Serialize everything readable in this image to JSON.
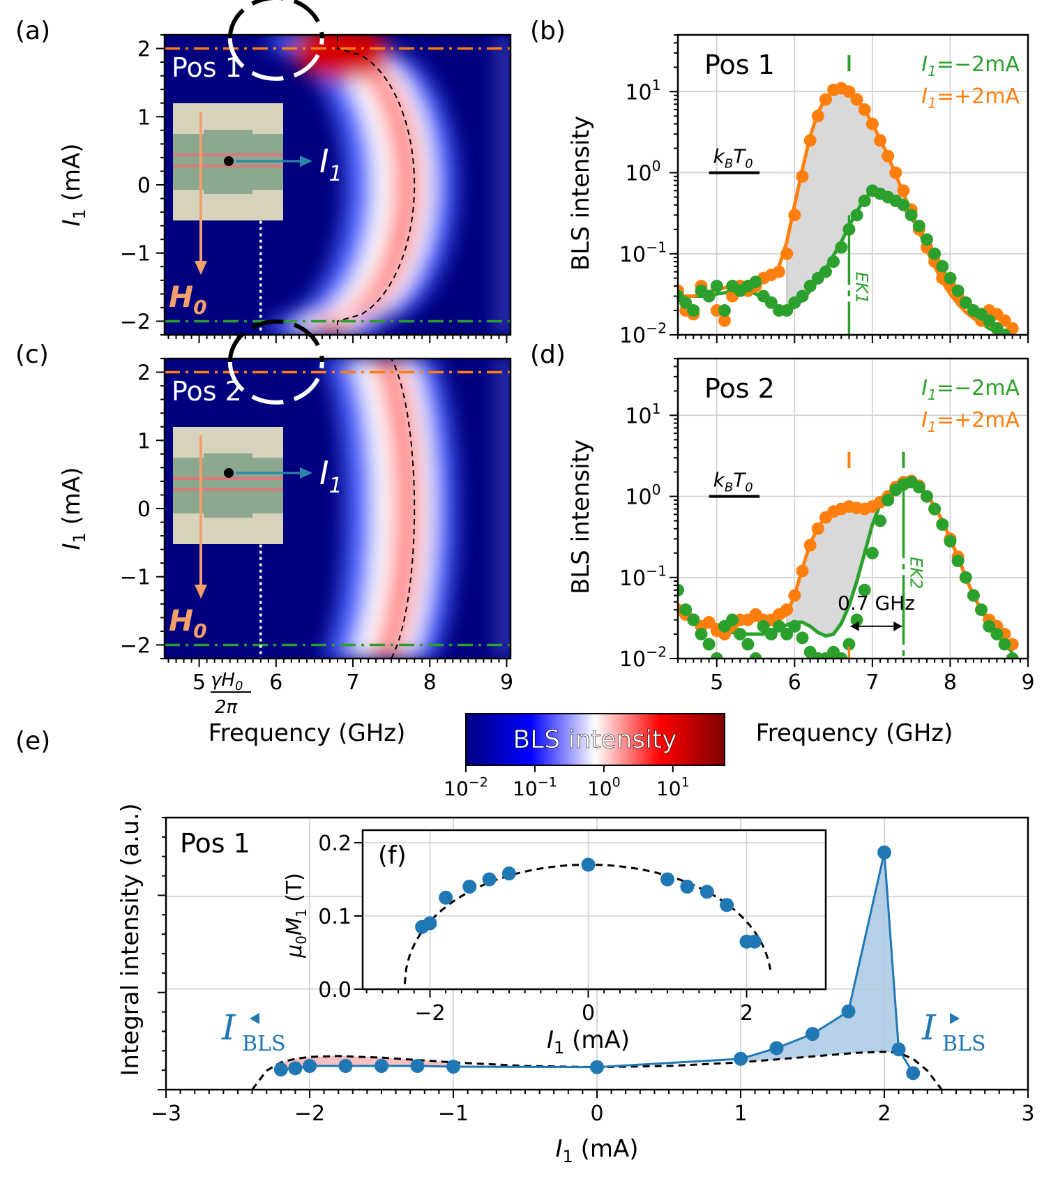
{
  "chart_data": [
    {
      "panel": "(a)",
      "type": "heatmap",
      "label": "Pos 1",
      "xlabel": "Frequency (GHz)",
      "ylabel_main": "I",
      "ylabel_sub": "1",
      "ylabel_unit": " (mA)",
      "xlim": [
        4.55,
        9.05
      ],
      "ylim": [
        -2.2,
        2.2
      ],
      "yticks": [
        -2,
        -1,
        0,
        1,
        2
      ],
      "xticks": [
        5,
        6,
        7,
        8,
        9
      ],
      "dispersion": {
        "fmax": 7.8,
        "fmin": 6.8,
        "imax": 2.0
      },
      "hline_top": 2.0,
      "hline_bottom": -2.0,
      "gamma_h0_line": 5.8,
      "colors": {
        "hline_top": "#ff7f0e",
        "hline_bottom": "#2ca02c",
        "circle": "#ffffff"
      },
      "inset": {
        "current_label": "I",
        "current_sub": "1",
        "field_label": "H",
        "field_sub": "0"
      }
    },
    {
      "panel": "(b)",
      "type": "scatter",
      "label": "Pos 1",
      "xlabel": "",
      "ylabel": "BLS intensity",
      "xlim": [
        4.5,
        9.0
      ],
      "ylim_log10": [
        -2,
        1.7
      ],
      "xticks": [
        5,
        6,
        7,
        8,
        9
      ],
      "yticks": [
        "10^-2",
        "10^-1",
        "10^0",
        "10^1"
      ],
      "kbt0": {
        "label": "k",
        "sub1": "B",
        "mid": "T",
        "sub2": "0",
        "y": 1.0,
        "x": [
          4.9,
          5.55
        ]
      },
      "marker_line_label": "EK1",
      "marker_freq": 6.7,
      "series": [
        {
          "name": "I1=−2mA",
          "color": "#2ca02c",
          "x": [
            4.5,
            4.6,
            4.7,
            4.8,
            4.9,
            5.0,
            5.1,
            5.2,
            5.3,
            5.4,
            5.5,
            5.6,
            5.7,
            5.8,
            5.9,
            6.0,
            6.1,
            6.2,
            6.3,
            6.4,
            6.5,
            6.6,
            6.7,
            6.8,
            6.9,
            7.0,
            7.1,
            7.2,
            7.3,
            7.4,
            7.5,
            7.6,
            7.7,
            7.8,
            7.9,
            8.0,
            8.1,
            8.2,
            8.3,
            8.4,
            8.5,
            8.6,
            8.7
          ],
          "y": [
            0.03,
            0.025,
            0.02,
            0.035,
            0.03,
            0.04,
            0.02,
            0.04,
            0.035,
            0.04,
            0.045,
            0.03,
            0.025,
            0.02,
            0.02,
            0.025,
            0.03,
            0.04,
            0.05,
            0.06,
            0.08,
            0.12,
            0.2,
            0.3,
            0.45,
            0.6,
            0.55,
            0.5,
            0.45,
            0.4,
            0.3,
            0.22,
            0.15,
            0.1,
            0.07,
            0.05,
            0.035,
            0.025,
            0.02,
            0.018,
            0.015,
            0.012,
            0.01
          ],
          "fit_y": [
            0.03,
            0.03,
            0.03,
            0.03,
            0.03,
            0.032,
            0.033,
            0.035,
            0.036,
            0.035,
            0.032,
            0.028,
            0.024,
            0.021,
            0.02,
            0.022,
            0.027,
            0.035,
            0.047,
            0.065,
            0.095,
            0.14,
            0.22,
            0.33,
            0.48,
            0.58,
            0.57,
            0.52,
            0.45,
            0.37,
            0.28,
            0.2,
            0.14,
            0.095,
            0.065,
            0.045,
            0.032,
            0.024,
            0.018,
            0.014,
            0.012,
            0.011,
            0.01
          ]
        },
        {
          "name": "I1=+2mA",
          "color": "#ff7f0e",
          "x": [
            4.5,
            4.6,
            4.7,
            4.8,
            4.9,
            5.0,
            5.1,
            5.2,
            5.3,
            5.4,
            5.5,
            5.6,
            5.7,
            5.8,
            5.9,
            6.0,
            6.1,
            6.2,
            6.3,
            6.4,
            6.5,
            6.6,
            6.7,
            6.8,
            6.9,
            7.0,
            7.1,
            7.2,
            7.3,
            7.4,
            7.5,
            7.6,
            7.7,
            7.8,
            7.9,
            8.0,
            8.1,
            8.2,
            8.3,
            8.4,
            8.5,
            8.6,
            8.7,
            8.8
          ],
          "y": [
            0.035,
            0.02,
            0.018,
            0.04,
            0.03,
            0.02,
            0.015,
            0.03,
            0.04,
            0.035,
            0.04,
            0.05,
            0.055,
            0.06,
            0.1,
            0.3,
            0.9,
            2.5,
            5.0,
            8.0,
            10.5,
            11.0,
            10.0,
            8.0,
            6.0,
            4.0,
            2.5,
            1.6,
            1.0,
            0.6,
            0.35,
            0.2,
            0.12,
            0.08,
            0.05,
            0.04,
            0.03,
            0.025,
            0.02,
            0.015,
            0.02,
            0.018,
            0.015,
            0.012
          ],
          "fit_y": [
            0.03,
            0.03,
            0.03,
            0.032,
            0.034,
            0.036,
            0.038,
            0.04,
            0.042,
            0.045,
            0.048,
            0.05,
            0.055,
            0.07,
            0.14,
            0.4,
            1.1,
            2.8,
            5.5,
            8.3,
            10.3,
            11.0,
            10.2,
            8.2,
            6.0,
            4.0,
            2.6,
            1.6,
            0.95,
            0.55,
            0.32,
            0.19,
            0.11,
            0.07,
            0.045,
            0.032,
            0.024,
            0.019,
            0.016,
            0.014,
            0.013,
            0.012,
            0.011,
            0.01
          ]
        }
      ],
      "legend": [
        {
          "main": "I",
          "sub": "1",
          "rest": "=−2mA",
          "color": "#2ca02c"
        },
        {
          "main": "I",
          "sub": "1",
          "rest": "=+2mA",
          "color": "#ff7f0e"
        }
      ],
      "dash_markers": [
        {
          "x": 6.7,
          "color": "#2ca02c"
        }
      ]
    },
    {
      "panel": "(c)",
      "type": "heatmap",
      "label": "Pos 2",
      "xlabel": "Frequency (GHz)",
      "ylabel_main": "I",
      "ylabel_sub": "1",
      "ylabel_unit": " (mA)",
      "xlim": [
        4.55,
        9.05
      ],
      "ylim": [
        -2.2,
        2.2
      ],
      "yticks": [
        -2,
        -1,
        0,
        1,
        2
      ],
      "xticks": [
        5,
        6,
        7,
        8,
        9
      ],
      "gamma_h0_label": {
        "num_main": "γH",
        "num_sub": "0",
        "den": "2π"
      },
      "dispersion": {
        "fmax": 7.8,
        "fmin": 7.3,
        "imax": 2.4
      },
      "hline_top": 2.0,
      "hline_bottom": -2.0,
      "gamma_h0_line": 5.8,
      "colors": {
        "hline_top": "#ff7f0e",
        "hline_bottom": "#2ca02c",
        "circle": "#ffffff"
      },
      "inset": {
        "current_label": "I",
        "current_sub": "1",
        "field_label": "H",
        "field_sub": "0"
      }
    },
    {
      "panel": "(d)",
      "type": "scatter",
      "label": "Pos 2",
      "xlabel": "Frequency (GHz)",
      "ylabel": "BLS intensity",
      "xlim": [
        4.5,
        9.0
      ],
      "ylim_log10": [
        -2,
        1.7
      ],
      "xticks": [
        5,
        6,
        7,
        8,
        9
      ],
      "yticks": [
        "10^-2",
        "10^-1",
        "10^0",
        "10^1"
      ],
      "kbt0": {
        "label": "k",
        "sub1": "B",
        "mid": "T",
        "sub2": "0",
        "y": 1.0,
        "x": [
          4.9,
          5.55
        ]
      },
      "marker_line_label": "EK2",
      "marker_freq": 7.4,
      "gap_label": "0.7 GHz",
      "series": [
        {
          "name": "I1=−2mA",
          "color": "#2ca02c",
          "x": [
            4.5,
            4.6,
            4.7,
            4.8,
            4.9,
            5.0,
            5.1,
            5.2,
            5.3,
            5.4,
            5.5,
            5.6,
            5.7,
            5.8,
            5.9,
            6.0,
            6.1,
            6.2,
            6.3,
            6.4,
            6.5,
            6.6,
            6.7,
            6.8,
            6.9,
            7.0,
            7.1,
            7.2,
            7.3,
            7.4,
            7.5,
            7.6,
            7.7,
            7.8,
            7.9,
            8.0,
            8.1,
            8.2,
            8.3,
            8.4,
            8.5,
            8.6,
            8.7,
            8.8
          ],
          "y": [
            0.07,
            0.04,
            0.03,
            0.02,
            0.015,
            0.01,
            0.025,
            0.03,
            0.02,
            0.015,
            0.01,
            0.025,
            0.02,
            0.025,
            0.02,
            0.025,
            0.018,
            0.012,
            0.01,
            0.01,
            0.012,
            0.01,
            0.015,
            0.03,
            0.07,
            0.2,
            0.5,
            0.9,
            1.2,
            1.4,
            1.5,
            1.3,
            1.0,
            0.7,
            0.45,
            0.28,
            0.16,
            0.1,
            0.06,
            0.04,
            0.025,
            0.02,
            0.015,
            0.01
          ],
          "fit_y": [
            0.04,
            0.035,
            0.03,
            0.027,
            0.025,
            0.023,
            0.022,
            0.021,
            0.02,
            0.02,
            0.02,
            0.02,
            0.021,
            0.023,
            0.026,
            0.028,
            0.028,
            0.025,
            0.021,
            0.019,
            0.02,
            0.027,
            0.045,
            0.09,
            0.2,
            0.45,
            0.8,
            1.1,
            1.3,
            1.4,
            1.45,
            1.3,
            1.05,
            0.75,
            0.5,
            0.3,
            0.18,
            0.1,
            0.06,
            0.04,
            0.027,
            0.02,
            0.015,
            0.012
          ]
        },
        {
          "name": "I1=+2mA",
          "color": "#ff7f0e",
          "x": [
            4.5,
            4.6,
            4.7,
            4.8,
            4.9,
            5.0,
            5.1,
            5.2,
            5.3,
            5.4,
            5.5,
            5.6,
            5.7,
            5.8,
            5.9,
            6.0,
            6.1,
            6.2,
            6.3,
            6.4,
            6.5,
            6.6,
            6.7,
            6.8,
            6.9,
            7.0,
            7.1,
            7.2,
            7.3,
            7.4,
            7.5,
            7.6,
            7.7,
            7.8,
            7.9,
            8.0,
            8.1,
            8.2,
            8.3,
            8.4,
            8.5,
            8.6,
            8.7,
            8.8
          ],
          "y": [
            0.04,
            0.035,
            0.03,
            0.025,
            0.028,
            0.022,
            0.02,
            0.025,
            0.03,
            0.03,
            0.035,
            0.03,
            0.03,
            0.035,
            0.04,
            0.06,
            0.12,
            0.25,
            0.4,
            0.55,
            0.65,
            0.7,
            0.75,
            0.72,
            0.7,
            0.75,
            0.85,
            1.0,
            1.3,
            1.5,
            1.55,
            1.35,
            1.0,
            0.7,
            0.45,
            0.3,
            0.18,
            0.1,
            0.06,
            0.04,
            0.03,
            0.025,
            0.02,
            0.015
          ],
          "fit_y": [
            0.04,
            0.035,
            0.03,
            0.028,
            0.027,
            0.026,
            0.026,
            0.026,
            0.027,
            0.028,
            0.03,
            0.03,
            0.03,
            0.03,
            0.035,
            0.06,
            0.13,
            0.26,
            0.42,
            0.55,
            0.64,
            0.68,
            0.7,
            0.7,
            0.7,
            0.74,
            0.85,
            1.0,
            1.25,
            1.45,
            1.5,
            1.35,
            1.05,
            0.75,
            0.5,
            0.3,
            0.18,
            0.1,
            0.06,
            0.04,
            0.03,
            0.022,
            0.017,
            0.013
          ]
        }
      ],
      "legend": [
        {
          "main": "I",
          "sub": "1",
          "rest": "=−2mA",
          "color": "#2ca02c"
        },
        {
          "main": "I",
          "sub": "1",
          "rest": "=+2mA",
          "color": "#ff7f0e"
        }
      ],
      "dash_markers": [
        {
          "x": 6.7,
          "color": "#ff7f0e"
        },
        {
          "x": 7.4,
          "color": "#2ca02c"
        }
      ]
    },
    {
      "panel": "colorbar",
      "type": "heatmap",
      "title": "BLS intensity",
      "ticks": [
        "10^-2",
        "10^-1",
        "10^0",
        "10^1"
      ],
      "colors": [
        "#00007f",
        "#0000ff",
        "#ffffff",
        "#ff0000",
        "#7f0000"
      ]
    },
    {
      "panel": "(e)",
      "type": "line",
      "label": "Pos 1",
      "xlabel_main": "I",
      "xlabel_sub": "1",
      "xlabel_unit": " (mA)",
      "ylabel": "Integral intensity (a.u.)",
      "xlim": [
        -3,
        3
      ],
      "xticks": [
        -3,
        -2,
        -1,
        0,
        1,
        2,
        3
      ],
      "ylim": [
        0,
        1
      ],
      "series": [
        {
          "name": "data",
          "color": "#1f77b4",
          "x": [
            -2.2,
            -2.1,
            -2.0,
            -1.75,
            -1.5,
            -1.25,
            -1.0,
            0.0,
            1.0,
            1.25,
            1.5,
            1.75,
            2.0,
            2.1,
            2.2
          ],
          "y": [
            0.085,
            0.09,
            0.1,
            0.1,
            0.1,
            0.1,
            0.097,
            0.095,
            0.13,
            0.175,
            0.235,
            0.33,
            1.0,
            0.17,
            0.07
          ]
        },
        {
          "name": "model",
          "color": "#000000",
          "x": [
            -2.4,
            -2.3,
            -2.2,
            -2.1,
            -2.0,
            -1.8,
            -1.5,
            -1.0,
            -0.5,
            0.0,
            0.5,
            1.0,
            1.5,
            1.8,
            2.0,
            2.1,
            2.2,
            2.3,
            2.4
          ],
          "y": [
            0.0,
            0.08,
            0.115,
            0.13,
            0.138,
            0.142,
            0.135,
            0.115,
            0.1,
            0.095,
            0.1,
            0.115,
            0.14,
            0.155,
            0.16,
            0.155,
            0.13,
            0.08,
            0.0
          ]
        }
      ],
      "annotations": [
        {
          "main": "I",
          "sub": "BLS",
          "side": "left"
        },
        {
          "main": "I",
          "sub": "BLS",
          "side": "right"
        }
      ]
    },
    {
      "panel": "(f)",
      "type": "scatter",
      "xlabel_main": "I",
      "xlabel_sub": "1",
      "xlabel_unit": " (mA)",
      "ylabel_main": "μ",
      "ylabel_sub0": "0",
      "ylabel_mid": "M",
      "ylabel_sub1": "1",
      "ylabel_unit": " (T)",
      "xlim": [
        -2.85,
        3.0
      ],
      "ylim": [
        0.0,
        0.2
      ],
      "xticks": [
        -2,
        0,
        2
      ],
      "yticks": [
        "0.0",
        "0.1",
        "0.2"
      ],
      "series": [
        {
          "name": "data",
          "color": "#1f77b4",
          "x": [
            -2.1,
            -2.0,
            -1.8,
            -1.5,
            -1.25,
            -1.0,
            0.0,
            1.0,
            1.25,
            1.5,
            1.75,
            2.0,
            2.1
          ],
          "y": [
            0.085,
            0.09,
            0.125,
            0.14,
            0.15,
            0.158,
            0.17,
            0.15,
            0.14,
            0.133,
            0.115,
            0.065,
            0.065
          ]
        }
      ],
      "fit": {
        "x0": 2.32,
        "y0": 0.17
      }
    }
  ]
}
